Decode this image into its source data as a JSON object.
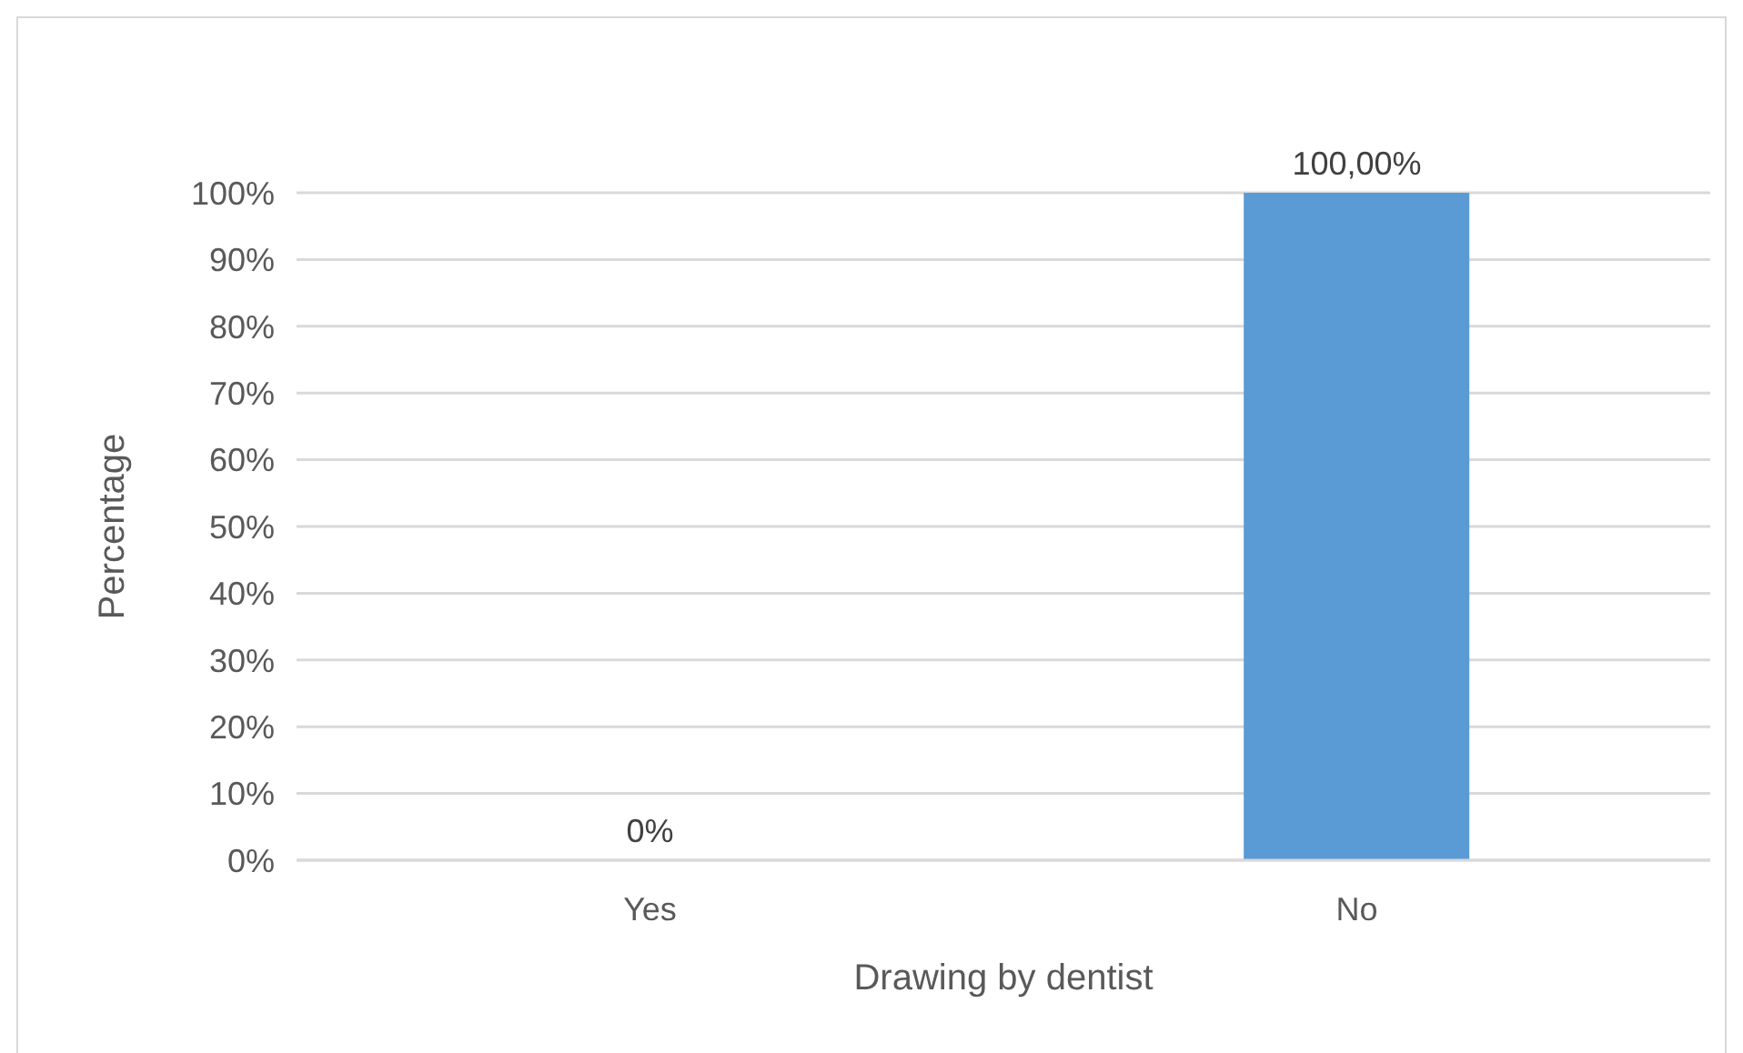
{
  "chart_data": {
    "type": "bar",
    "xlabel": "Drawing by dentist",
    "ylabel": "Percentage",
    "categories": [
      "Yes",
      "No"
    ],
    "values": [
      0,
      100
    ],
    "color": "#5b9bd5",
    "value_labels": [
      "0%",
      "100,00%"
    ],
    "ylim": [
      0,
      100
    ],
    "yticks": [
      {
        "value": 0,
        "label": "0%"
      },
      {
        "value": 10,
        "label": "10%"
      },
      {
        "value": 20,
        "label": "20%"
      },
      {
        "value": 30,
        "label": "30%"
      },
      {
        "value": 40,
        "label": "40%"
      },
      {
        "value": 50,
        "label": "50%"
      },
      {
        "value": 60,
        "label": "60%"
      },
      {
        "value": 70,
        "label": "70%"
      },
      {
        "value": 80,
        "label": "80%"
      },
      {
        "value": 90,
        "label": "90%"
      },
      {
        "value": 100,
        "label": "100%"
      }
    ],
    "grid": "y"
  }
}
